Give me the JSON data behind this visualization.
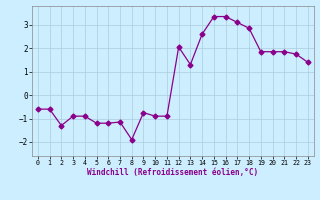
{
  "x": [
    0,
    1,
    2,
    3,
    4,
    5,
    6,
    7,
    8,
    9,
    10,
    11,
    12,
    13,
    14,
    15,
    16,
    17,
    18,
    19,
    20,
    21,
    22,
    23
  ],
  "y": [
    -0.6,
    -0.6,
    -1.3,
    -0.9,
    -0.9,
    -1.2,
    -1.2,
    -1.15,
    -1.9,
    -0.75,
    -0.9,
    -0.9,
    2.05,
    1.3,
    2.6,
    3.35,
    3.35,
    3.1,
    2.85,
    1.85,
    1.85,
    1.85,
    1.75,
    1.4
  ],
  "line_color": "#8B008B",
  "marker": "D",
  "markersize": 2.5,
  "bg_color": "#cceeff",
  "grid_color": "#aaccdd",
  "xlabel": "Windchill (Refroidissement éolien,°C)",
  "ylim": [
    -2.6,
    3.8
  ],
  "xlim": [
    -0.5,
    23.5
  ],
  "yticks": [
    -2,
    -1,
    0,
    1,
    2,
    3
  ],
  "xticks": [
    0,
    1,
    2,
    3,
    4,
    5,
    6,
    7,
    8,
    9,
    10,
    11,
    12,
    13,
    14,
    15,
    16,
    17,
    18,
    19,
    20,
    21,
    22,
    23
  ]
}
